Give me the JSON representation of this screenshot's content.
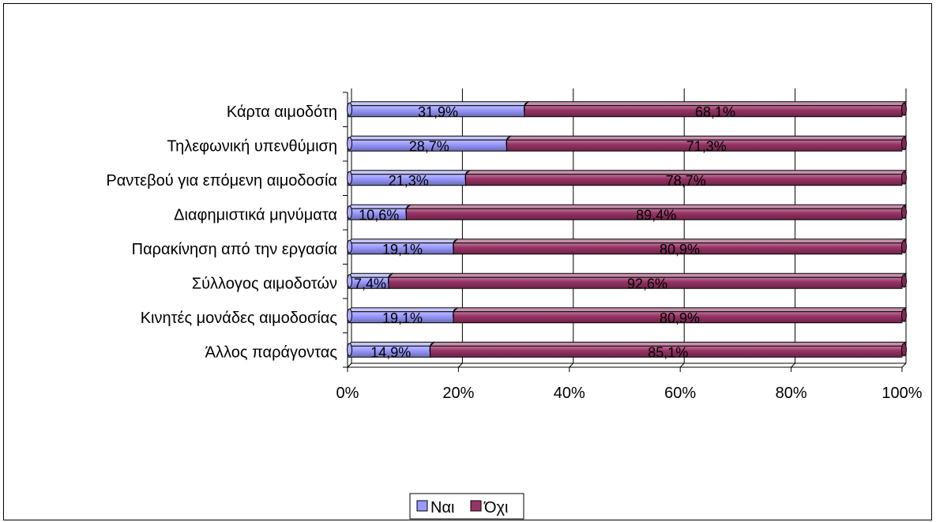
{
  "chart_data": {
    "type": "bar",
    "orientation": "horizontal",
    "stacked": "100%",
    "categories": [
      "Κάρτα αιμοδότη",
      "Τηλεφωνική υπενθύμιση",
      "Ραντεβού για επόμενη αιμοδοσία",
      "Διαφημιστικά μηνύματα",
      "Παρακίνηση από την εργασία",
      "Σύλλογος αιμοδοτών",
      "Κινητές μονάδες αιμοδοσίας",
      "Άλλος παράγοντας"
    ],
    "series": [
      {
        "name": "Ναι",
        "color": "#9999ff",
        "values": [
          31.9,
          28.7,
          21.3,
          10.6,
          19.1,
          7.4,
          19.1,
          14.9
        ],
        "labels": [
          "31,9%",
          "28,7%",
          "21,3%",
          "10,6%",
          "19,1%",
          "7,4%",
          "19,1%",
          "14,9%"
        ]
      },
      {
        "name": "Όχι",
        "color": "#993366",
        "values": [
          68.1,
          71.3,
          78.7,
          89.4,
          80.9,
          92.6,
          80.9,
          85.1
        ],
        "labels": [
          "68,1%",
          "71,3%",
          "78,7%",
          "89,4%",
          "80,9%",
          "92,6%",
          "80,9%",
          "85,1%"
        ]
      }
    ],
    "xlim": [
      0,
      100
    ],
    "xticks": [
      "0%",
      "20%",
      "40%",
      "60%",
      "80%",
      "100%"
    ],
    "grid": true,
    "legend_position": "bottom"
  }
}
